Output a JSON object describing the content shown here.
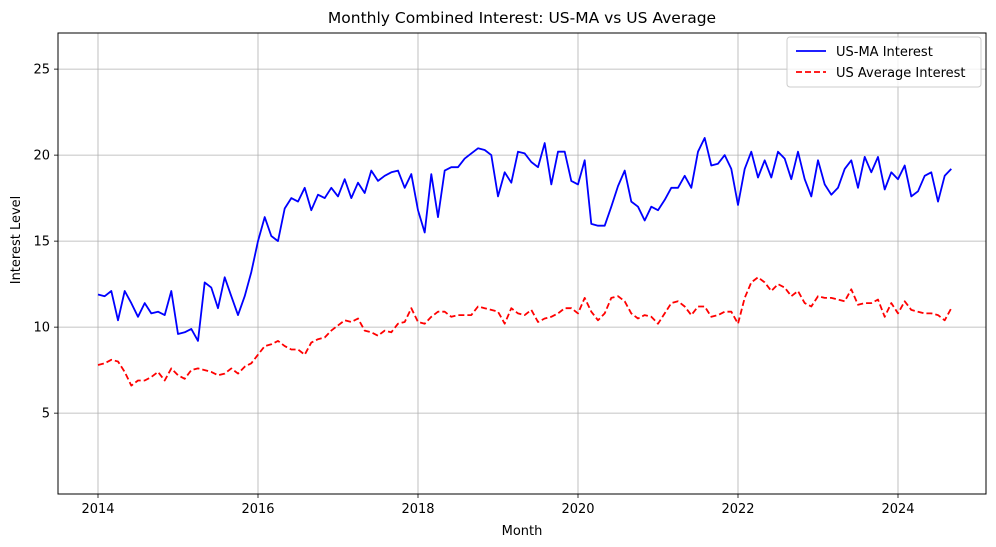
{
  "chart_data": {
    "type": "line",
    "title": "Monthly Combined Interest: US-MA vs US Average",
    "xlabel": "Month",
    "ylabel": "Interest Level",
    "xlim": [
      2013.5,
      2025.1
    ],
    "ylim": [
      0.3,
      27.1
    ],
    "xticks": [
      2014,
      2016,
      2018,
      2020,
      2022,
      2024
    ],
    "yticks": [
      5,
      10,
      15,
      20,
      25
    ],
    "grid": true,
    "legend_position": "top-right",
    "x_start": "2014-01",
    "x_end": "2024-09",
    "series": [
      {
        "name": "US-MA Interest",
        "color": "#0000ff",
        "style": "solid",
        "values": [
          11.9,
          11.8,
          12.1,
          10.4,
          12.1,
          11.4,
          10.6,
          11.4,
          10.8,
          10.9,
          10.7,
          12.1,
          9.6,
          9.7,
          9.9,
          9.2,
          12.6,
          12.3,
          11.1,
          12.9,
          11.8,
          10.7,
          11.8,
          13.2,
          15.0,
          16.4,
          15.3,
          15.0,
          16.9,
          17.5,
          17.3,
          18.1,
          16.8,
          17.7,
          17.5,
          18.1,
          17.6,
          18.6,
          17.5,
          18.4,
          17.8,
          19.1,
          18.5,
          18.8,
          19.0,
          19.1,
          18.1,
          18.9,
          16.8,
          15.5,
          18.9,
          16.4,
          19.1,
          19.3,
          19.3,
          19.8,
          20.1,
          20.4,
          20.3,
          20.0,
          17.6,
          19.0,
          18.4,
          20.2,
          20.1,
          19.6,
          19.3,
          20.7,
          18.3,
          20.2,
          20.2,
          18.5,
          18.3,
          19.7,
          16.0,
          15.9,
          15.9,
          17.0,
          18.2,
          19.1,
          17.3,
          17.0,
          16.2,
          17.0,
          16.8,
          17.4,
          18.1,
          18.1,
          18.8,
          18.1,
          20.2,
          21.0,
          19.4,
          19.5,
          20.0,
          19.2,
          17.1,
          19.2,
          20.2,
          18.7,
          19.7,
          18.7,
          20.2,
          19.8,
          18.6,
          20.2,
          18.6,
          17.6,
          19.7,
          18.3,
          17.7,
          18.1,
          19.2,
          19.7,
          18.1,
          19.9,
          19.0,
          19.9,
          18.0,
          19.0,
          18.6,
          19.4,
          17.6,
          17.9,
          18.8,
          19.0,
          17.3,
          18.8,
          19.2
        ]
      },
      {
        "name": "US Average Interest",
        "color": "#ff0000",
        "style": "dashed",
        "values": [
          7.8,
          7.9,
          8.1,
          8.0,
          7.4,
          6.6,
          6.9,
          6.9,
          7.1,
          7.4,
          6.9,
          7.6,
          7.2,
          7.0,
          7.5,
          7.6,
          7.5,
          7.4,
          7.2,
          7.3,
          7.6,
          7.3,
          7.7,
          7.9,
          8.4,
          8.9,
          9.0,
          9.2,
          8.9,
          8.7,
          8.7,
          8.4,
          9.1,
          9.3,
          9.4,
          9.8,
          10.1,
          10.4,
          10.3,
          10.5,
          9.8,
          9.7,
          9.5,
          9.8,
          9.7,
          10.2,
          10.3,
          11.1,
          10.3,
          10.2,
          10.6,
          10.9,
          10.9,
          10.6,
          10.7,
          10.7,
          10.7,
          11.2,
          11.1,
          11.0,
          10.9,
          10.2,
          11.1,
          10.8,
          10.7,
          11.0,
          10.3,
          10.5,
          10.6,
          10.8,
          11.1,
          11.1,
          10.8,
          11.7,
          10.9,
          10.4,
          10.8,
          11.7,
          11.8,
          11.5,
          10.8,
          10.5,
          10.7,
          10.6,
          10.2,
          10.8,
          11.4,
          11.5,
          11.2,
          10.7,
          11.2,
          11.2,
          10.6,
          10.7,
          10.9,
          10.9,
          10.2,
          11.7,
          12.6,
          12.9,
          12.6,
          12.1,
          12.5,
          12.3,
          11.8,
          12.1,
          11.4,
          11.2,
          11.8,
          11.7,
          11.7,
          11.6,
          11.5,
          12.2,
          11.3,
          11.4,
          11.4,
          11.6,
          10.6,
          11.4,
          10.8,
          11.5,
          11.0,
          10.9,
          10.8,
          10.8,
          10.7,
          10.4,
          11.1
        ]
      }
    ]
  }
}
